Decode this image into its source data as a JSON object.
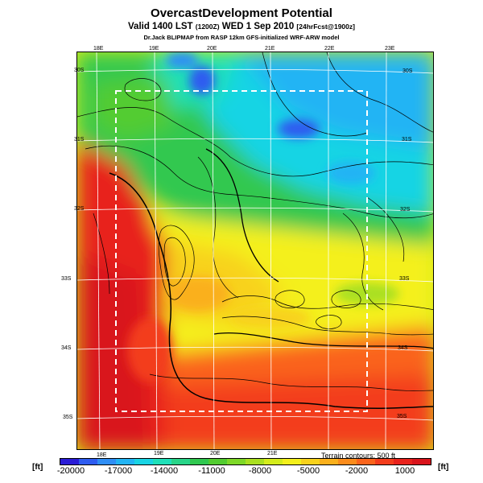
{
  "header": {
    "title": "OvercastDevelopment Potential",
    "valid_line": "Valid 1400 LST",
    "valid_code": "(1200Z)",
    "valid_date": "WED 1 Sep 2010",
    "forecast": "[24hrFcst@1900z]",
    "credit": "Dr.Jack BLIPMAP from RASP 12km GFS-initialized WRF-ARW model"
  },
  "map": {
    "top_lon_labels": [
      "18E",
      "19E",
      "20E",
      "21E",
      "22E",
      "23E"
    ],
    "bottom_lon_labels": [
      "18E",
      "19E",
      "20E",
      "21E"
    ],
    "left_lat_labels": [
      "30S",
      "31S",
      "32S",
      "33S",
      "34S",
      "35S"
    ],
    "right_lat_labels": [
      "30S",
      "31S",
      "32S",
      "33S",
      "34S",
      "35S"
    ],
    "terrain_note": "Terrain contours: 500 ft"
  },
  "colorbar": {
    "unit": "[ft]",
    "ticks": [
      "-20000",
      "-17000",
      "-14000",
      "-11000",
      "-8000",
      "-5000",
      "-2000",
      "1000"
    ],
    "colors": [
      "#2a1cd6",
      "#2e5cf0",
      "#2f8ef5",
      "#22b4f4",
      "#19d4e4",
      "#1fe0b8",
      "#28d488",
      "#30c850",
      "#52cc30",
      "#7ed828",
      "#aae020",
      "#d4ec1c",
      "#f4f01c",
      "#f8d21c",
      "#fab01c",
      "#fb8c1c",
      "#fa641c",
      "#f33c1c",
      "#e8221c",
      "#d9141c"
    ]
  }
}
